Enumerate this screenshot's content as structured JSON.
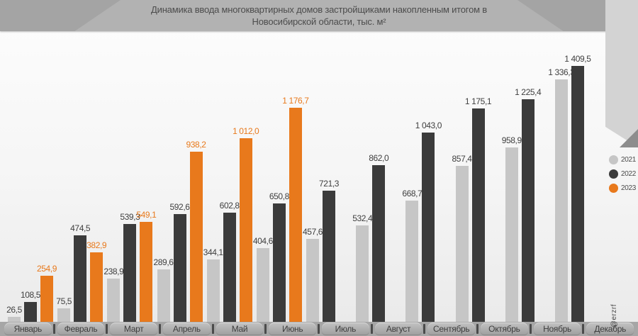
{
  "title": {
    "line1": "Динамика ввода многоквартирных домов застройщиками накопленным итогом в",
    "line2": "Новосибирской области, тыс. м²"
  },
  "legend": {
    "position": "right",
    "items": [
      {
        "label": "2021",
        "color": "#c6c6c6"
      },
      {
        "label": "2022",
        "color": "#3b3b3b"
      },
      {
        "label": "2023",
        "color": "#e8791c"
      }
    ]
  },
  "watermark": "@erzrf",
  "colors": {
    "banner": "#b2b2b2",
    "axis_band": "#a6a6a6",
    "series_2021": "#c6c6c6",
    "series_2022": "#3b3b3b",
    "series_2023": "#e8791c",
    "label_text": "#3f3f3f"
  },
  "chart_data": {
    "type": "bar",
    "title": "Динамика ввода многоквартирных домов застройщиками накопленным итогом в Новосибирской области, тыс. м²",
    "xlabel": "",
    "ylabel": "",
    "grid": false,
    "legend_position": "right",
    "value_labels": true,
    "ylim": [
      0,
      1600
    ],
    "categories": [
      "Январь",
      "Февраль",
      "Март",
      "Апрель",
      "Май",
      "Июнь",
      "Июль",
      "Август",
      "Сентябрь",
      "Октябрь",
      "Ноябрь",
      "Декабрь"
    ],
    "series": [
      {
        "name": "2021",
        "color": "#c6c6c6",
        "label_color": "#3f3f3f",
        "values": [
          26.5,
          75.5,
          238.9,
          289.6,
          344.1,
          404.6,
          457.6,
          532.4,
          668.7,
          857.4,
          958.9,
          1336.3
        ],
        "labels": [
          "26,5",
          "75,5",
          "238,9",
          "289,6",
          "344,1",
          "404,6",
          "457,6",
          "532,4",
          "668,7",
          "857,4",
          "958,9",
          "1 336,3"
        ]
      },
      {
        "name": "2022",
        "color": "#3b3b3b",
        "label_color": "#3f3f3f",
        "values": [
          108.5,
          474.5,
          539.3,
          592.6,
          602.8,
          650.8,
          721.3,
          862.0,
          1043.0,
          1175.1,
          1225.4,
          1409.5
        ],
        "labels": [
          "108,5",
          "474,5",
          "539,3",
          "592,6",
          "602,8",
          "650,8",
          "721,3",
          "862,0",
          "1 043,0",
          "1 175,1",
          "1 225,4",
          "1 409,5"
        ]
      },
      {
        "name": "2023",
        "color": "#e8791c",
        "label_color": "#e8791c",
        "values": [
          254.9,
          382.9,
          549.1,
          938.2,
          1012.0,
          1176.7,
          null,
          null,
          null,
          null,
          null,
          null
        ],
        "labels": [
          "254,9",
          "382,9",
          "549,1",
          "938,2",
          "1 012,0",
          "1 176,7",
          null,
          null,
          null,
          null,
          null,
          null
        ]
      }
    ]
  }
}
